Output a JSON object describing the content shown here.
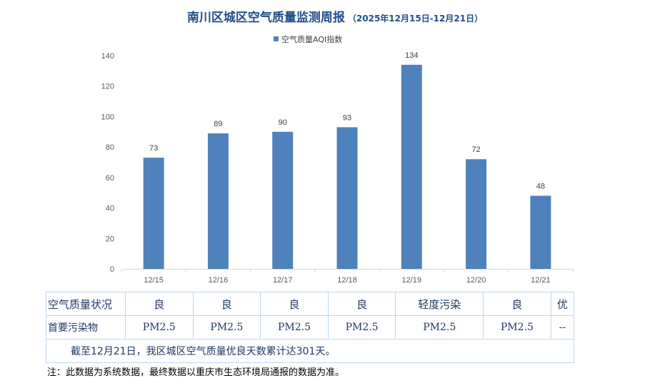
{
  "title": "南川区城区空气质量监测周报",
  "subtitle": "（2025年12月15日-12月21日）",
  "colors": {
    "bar": "#4f81bd",
    "title": "#1f4e8c",
    "grid": "#d9d9d9"
  },
  "chart_data": {
    "type": "bar",
    "categories": [
      "12/15",
      "12/16",
      "12/17",
      "12/18",
      "12/19",
      "12/20",
      "12/21"
    ],
    "series": [
      {
        "name": "空气质量AQI指数",
        "values": [
          73,
          89,
          90,
          93,
          134,
          72,
          48
        ]
      }
    ],
    "ylim": [
      0,
      140
    ],
    "yticks": [
      0,
      20,
      40,
      60,
      80,
      100,
      120,
      140
    ],
    "legend": "top-center",
    "grid": false
  },
  "table": {
    "row1_header": "空气质量状况",
    "row1": [
      "良",
      "良",
      "良",
      "良",
      "轻度污染",
      "良",
      "优"
    ],
    "row2_header": "首要污染物",
    "row2": [
      "PM2.5",
      "PM2.5",
      "PM2.5",
      "PM2.5",
      "PM2.5",
      "PM2.5",
      "--"
    ],
    "summary": "截至12月21日，我区城区空气质量优良天数累计达301天。"
  },
  "note": "注：此数据为系统数据，最终数据以重庆市生态环境局通报的数据为准。"
}
